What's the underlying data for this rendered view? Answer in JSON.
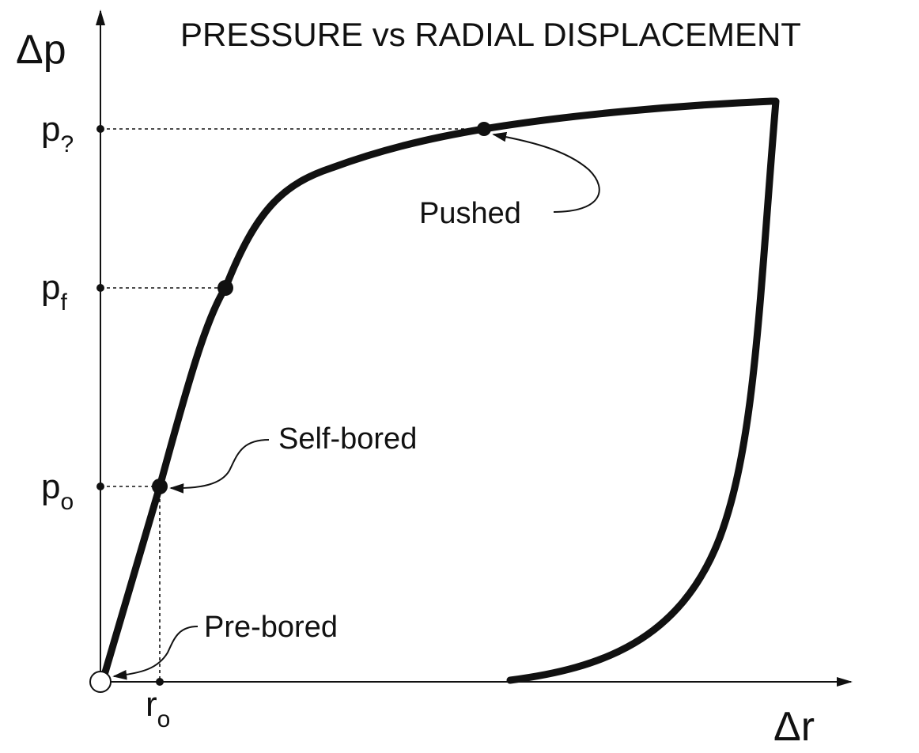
{
  "title": "PRESSURE vs RADIAL DISPLACEMENT",
  "axes": {
    "y_symbol": "Δp",
    "x_symbol": "Δr"
  },
  "levels": {
    "p_q": {
      "base": "p",
      "subscript": "?"
    },
    "p_f": {
      "base": "p",
      "subscript": "f"
    },
    "p_o": {
      "base": "p",
      "subscript": "o"
    },
    "r_o": {
      "base": "r",
      "subscript": "o"
    }
  },
  "annotations": {
    "pushed": "Pushed",
    "self_bored": "Self-bored",
    "pre_bored": "Pre-bored"
  },
  "colors": {
    "ink": "#111111",
    "background": "#ffffff"
  }
}
